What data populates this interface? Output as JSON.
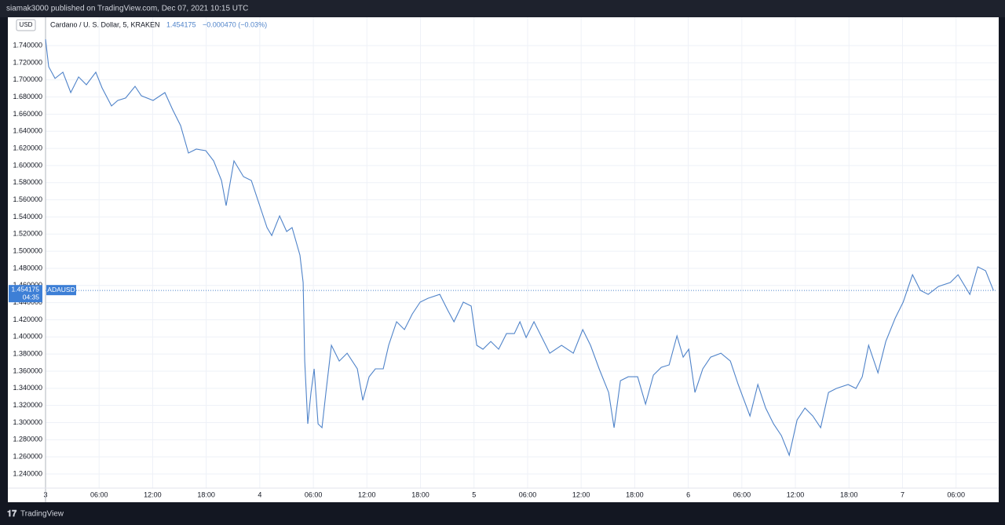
{
  "header": {
    "text": "siamak3000 published on TradingView.com, Dec 07, 2021 10:15 UTC"
  },
  "footer": {
    "brand": "TradingView"
  },
  "chart_data": {
    "type": "line",
    "symbol": "Cardano / U. S. Dollar, 5, KRAKEN",
    "last_price": 1.454175,
    "change": "−0.000470 (−0.03%)",
    "currency": "USD",
    "ticker": "ADAUSD",
    "countdown": "04:35",
    "x": [
      0,
      0.35,
      1.06,
      1.94,
      2.82,
      3.7,
      4.57,
      5.63,
      6.33,
      7.39,
      8.09,
      8.97,
      10.03,
      10.73,
      12.05,
      13.37,
      14.25,
      15.13,
      16.01,
      16.89,
      17.95,
      18.83,
      19.71,
      20.23,
      21.11,
      22.17,
      23.05,
      23.93,
      24.81,
      25.34,
      26.22,
      27.01,
      27.62,
      28.5,
      28.86,
      29.03,
      29.38,
      29.74,
      30.09,
      30.53,
      30.97,
      31.41,
      32.02,
      32.9,
      33.78,
      34.93,
      35.54,
      36.25,
      36.95,
      37.83,
      38.44,
      39.32,
      40.2,
      41.08,
      41.96,
      42.84,
      44.16,
      45.04,
      45.75,
      46.8,
      47.68,
      48.3,
      49,
      49.88,
      50.76,
      51.64,
      52.52,
      53.14,
      53.84,
      54.72,
      55.6,
      56.48,
      57.8,
      59.12,
      60.18,
      61.05,
      62.02,
      63.08,
      63.69,
      64.4,
      65.28,
      66.33,
      67.21,
      68.09,
      68.97,
      69.85,
      70.73,
      71.43,
      72.05,
      72.75,
      73.63,
      74.51,
      75.66,
      76.71,
      77.59,
      78.91,
      79.79,
      80.67,
      81.55,
      82.43,
      83.31,
      84.19,
      85.07,
      85.95,
      86.83,
      87.71,
      88.59,
      89.91,
      90.79,
      91.49,
      92.2,
      93.25,
      94.13,
      95.19,
      96.07,
      97.12,
      98,
      98.88,
      100.03,
      101.35,
      102.22,
      103.54,
      104.43,
      105.31,
      106.19
    ],
    "series": [
      {
        "name": "ADAUSD",
        "color": "#4f83c9",
        "values": [
          1.7475,
          1.7154,
          1.7017,
          1.709,
          1.6852,
          1.7035,
          1.6943,
          1.709,
          1.6907,
          1.6696,
          1.676,
          1.6788,
          1.6925,
          1.6815,
          1.676,
          1.6852,
          1.665,
          1.6467,
          1.6146,
          1.6192,
          1.6174,
          1.6055,
          1.5826,
          1.5533,
          1.6055,
          1.5871,
          1.5826,
          1.5551,
          1.5276,
          1.5184,
          1.5413,
          1.523,
          1.5276,
          1.4955,
          1.4635,
          1.3718,
          1.2985,
          1.3352,
          1.3627,
          1.2985,
          1.294,
          1.3352,
          1.3902,
          1.3718,
          1.381,
          1.3627,
          1.326,
          1.3535,
          1.3627,
          1.3627,
          1.3902,
          1.4177,
          1.4085,
          1.4268,
          1.4406,
          1.4451,
          1.4497,
          1.4314,
          1.4177,
          1.4406,
          1.436,
          1.3902,
          1.3856,
          1.3947,
          1.3856,
          1.4039,
          1.4039,
          1.4177,
          1.3993,
          1.4177,
          1.3993,
          1.381,
          1.3902,
          1.381,
          1.4085,
          1.3902,
          1.3627,
          1.3352,
          1.294,
          1.3489,
          1.3535,
          1.3535,
          1.3215,
          1.3554,
          1.3645,
          1.3673,
          1.4012,
          1.3764,
          1.3856,
          1.3352,
          1.3627,
          1.3764,
          1.381,
          1.3718,
          1.3444,
          1.3077,
          1.3444,
          1.3169,
          1.2985,
          1.2848,
          1.2619,
          1.3031,
          1.3169,
          1.3077,
          1.294,
          1.3352,
          1.3398,
          1.3444,
          1.3398,
          1.3535,
          1.3902,
          1.3581,
          1.3947,
          1.4222,
          1.4406,
          1.4726,
          1.4543,
          1.4497,
          1.4589,
          1.4635,
          1.4726,
          1.4497,
          1.4818,
          1.4772,
          1.454175
        ]
      }
    ],
    "xlim": [
      0,
      106.6
    ],
    "xticks": [
      {
        "value": 0,
        "label": "3"
      },
      {
        "value": 6,
        "label": "06:00"
      },
      {
        "value": 12,
        "label": "12:00"
      },
      {
        "value": 18,
        "label": "18:00"
      },
      {
        "value": 24,
        "label": "4"
      },
      {
        "value": 30,
        "label": "06:00"
      },
      {
        "value": 36,
        "label": "12:00"
      },
      {
        "value": 42,
        "label": "18:00"
      },
      {
        "value": 48,
        "label": "5"
      },
      {
        "value": 54,
        "label": "06:00"
      },
      {
        "value": 60,
        "label": "12:00"
      },
      {
        "value": 66,
        "label": "18:00"
      },
      {
        "value": 72,
        "label": "6"
      },
      {
        "value": 78,
        "label": "06:00"
      },
      {
        "value": 84,
        "label": "12:00"
      },
      {
        "value": 90,
        "label": "18:00"
      },
      {
        "value": 96,
        "label": "7"
      },
      {
        "value": 102,
        "label": "06:00"
      }
    ],
    "ylim": [
      1.2235,
      1.7731
    ],
    "yticks": [
      {
        "value": 1.24,
        "label": "1.240000"
      },
      {
        "value": 1.26,
        "label": "1.260000"
      },
      {
        "value": 1.28,
        "label": "1.280000"
      },
      {
        "value": 1.3,
        "label": "1.300000"
      },
      {
        "value": 1.32,
        "label": "1.320000"
      },
      {
        "value": 1.34,
        "label": "1.340000"
      },
      {
        "value": 1.36,
        "label": "1.360000"
      },
      {
        "value": 1.38,
        "label": "1.380000"
      },
      {
        "value": 1.4,
        "label": "1.400000"
      },
      {
        "value": 1.42,
        "label": "1.420000"
      },
      {
        "value": 1.44,
        "label": "1.440000"
      },
      {
        "value": 1.46,
        "label": "1.460000"
      },
      {
        "value": 1.48,
        "label": "1.480000"
      },
      {
        "value": 1.5,
        "label": "1.500000"
      },
      {
        "value": 1.52,
        "label": "1.520000"
      },
      {
        "value": 1.54,
        "label": "1.540000"
      },
      {
        "value": 1.56,
        "label": "1.560000"
      },
      {
        "value": 1.58,
        "label": "1.580000"
      },
      {
        "value": 1.6,
        "label": "1.600000"
      },
      {
        "value": 1.62,
        "label": "1.620000"
      },
      {
        "value": 1.64,
        "label": "1.640000"
      },
      {
        "value": 1.66,
        "label": "1.660000"
      },
      {
        "value": 1.68,
        "label": "1.680000"
      },
      {
        "value": 1.7,
        "label": "1.700000"
      },
      {
        "value": 1.72,
        "label": "1.720000"
      },
      {
        "value": 1.74,
        "label": "1.740000"
      }
    ],
    "grid": true
  }
}
